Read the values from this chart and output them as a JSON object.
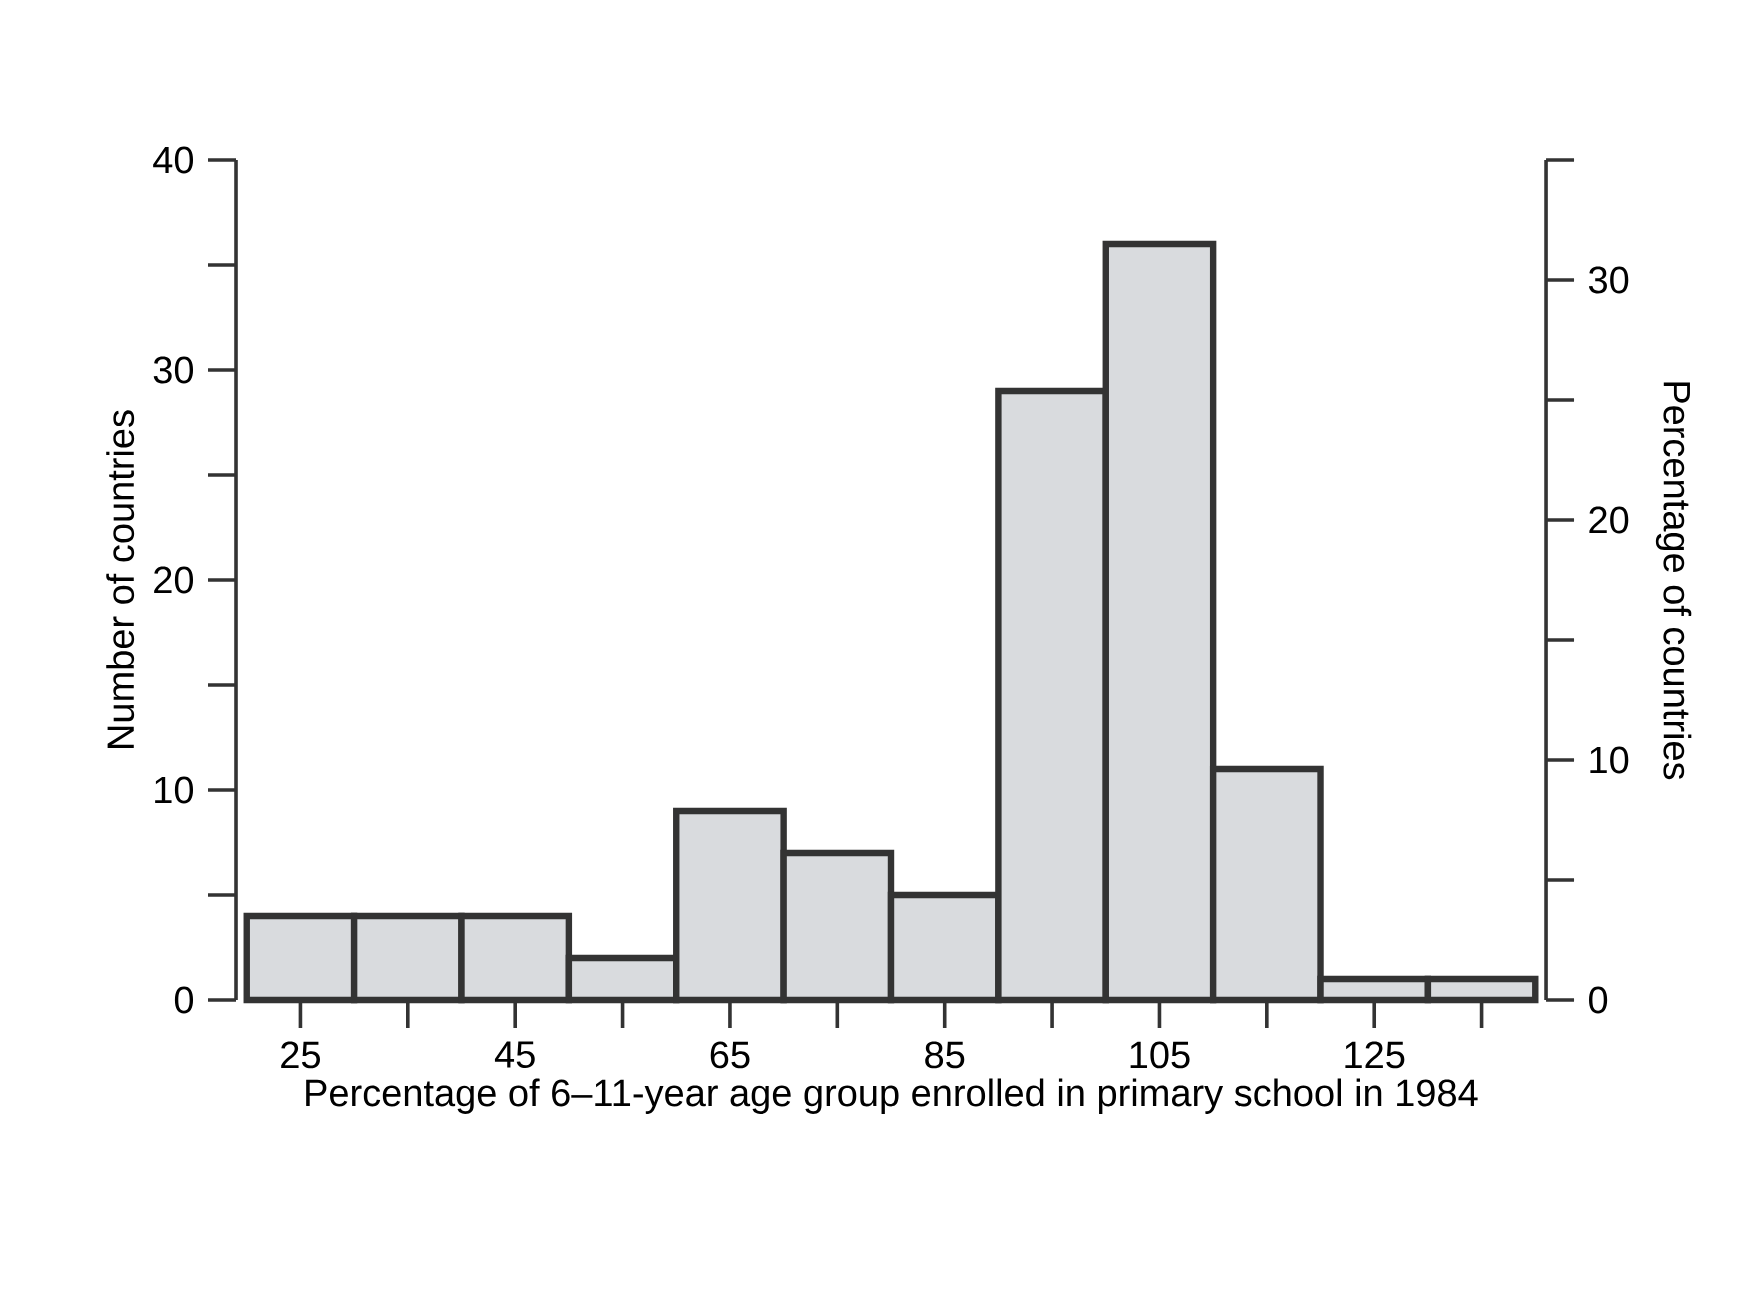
{
  "chart_data": {
    "type": "histogram",
    "xlabel": "Percentage of 6–11-year age group enrolled in primary school in 1984",
    "ylabel": "Number of countries",
    "y2label": "Percentage of countries",
    "bins": [
      20,
      30,
      40,
      50,
      60,
      70,
      80,
      90,
      100,
      110,
      120,
      130,
      140
    ],
    "values": [
      4,
      4,
      4,
      2,
      9,
      7,
      5,
      29,
      36,
      11,
      1,
      1
    ],
    "color": "#d9dbde",
    "xlim": [
      19,
      141
    ],
    "xticks": [
      25,
      {
        "value": 35,
        "label": null
      },
      45,
      {
        "value": 55,
        "label": null
      },
      65,
      {
        "value": 75,
        "label": null
      },
      85,
      {
        "value": 95,
        "label": null
      },
      105,
      {
        "value": 115,
        "label": null
      },
      125,
      {
        "value": 135,
        "label": null
      }
    ],
    "ylim": [
      0,
      40
    ],
    "yticks": [
      0,
      {
        "value": 5,
        "label": null
      },
      10,
      {
        "value": 15,
        "label": null
      },
      20,
      {
        "value": 25,
        "label": null
      },
      30,
      {
        "value": 35,
        "label": null
      },
      40
    ],
    "y2lim": [
      0,
      35
    ],
    "y2ticks": [
      0,
      {
        "value": 5,
        "label": null
      },
      10,
      {
        "value": 15,
        "label": null
      },
      20,
      {
        "value": 25,
        "label": null
      },
      30,
      {
        "value": 35,
        "label": null
      }
    ]
  }
}
